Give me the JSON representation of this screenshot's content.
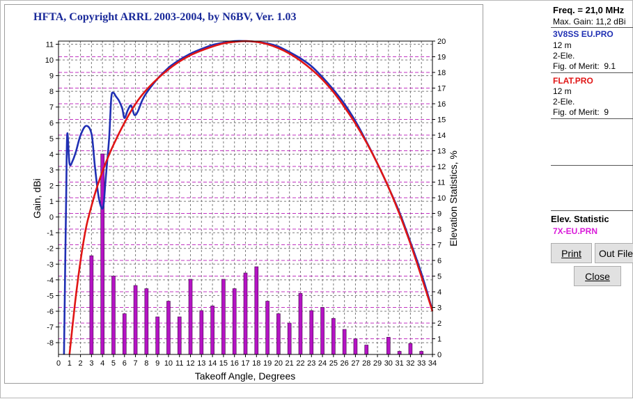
{
  "title": "HFTA, Copyright ARRL 2003-2004, by N6BV, Ver. 1.03",
  "side_panel": {
    "freq": "Freq. = 21,0 MHz",
    "max_gain": "Max. Gain: 11,2 dBi",
    "antennas": [
      {
        "name": "3V8SS EU.PRO",
        "height": "12 m",
        "elements": "2-Ele.",
        "fom_label": "Fig. of Merit:",
        "fom_value": "9.1",
        "color": "#1f2fb3"
      },
      {
        "name": "FLAT.PRO",
        "height": "12 m",
        "elements": "2-Ele.",
        "fom_label": "Fig. of Merit:",
        "fom_value": "9",
        "color": "#e01515"
      }
    ],
    "elev_title": "Elev. Statistic",
    "elev_file": "7X-EU.PRN",
    "elev_file_color": "#d91ad9",
    "buttons": {
      "print": "Print",
      "out_file": "Out File",
      "close": "Close"
    }
  },
  "chart_data": {
    "type": "line",
    "xlabel": "Takeoff Angle, Degrees",
    "ylabel": "Gain, dBi",
    "y2label": "Elevation Statistics, %",
    "xlim": [
      0,
      34
    ],
    "ylim": [
      -8.75,
      11.2
    ],
    "y2lim": [
      0,
      20
    ],
    "grid": true,
    "x_ticks": [
      0,
      1,
      2,
      3,
      4,
      5,
      6,
      7,
      8,
      9,
      10,
      11,
      12,
      13,
      14,
      15,
      16,
      17,
      18,
      19,
      20,
      21,
      22,
      23,
      24,
      25,
      26,
      27,
      28,
      29,
      30,
      31,
      32,
      33,
      34
    ],
    "y_ticks": [
      11,
      10,
      9,
      8,
      7,
      6,
      5,
      4,
      3,
      2,
      1,
      0,
      -1,
      -2,
      -3,
      -4,
      -5,
      -6,
      -7,
      -8
    ],
    "y2_ticks": [
      20,
      19,
      18,
      17,
      16,
      15,
      14,
      13,
      12,
      11,
      10,
      9,
      8,
      7,
      6,
      5,
      4,
      3,
      2,
      1,
      0
    ],
    "series": [
      {
        "name": "3V8SS EU.PRO",
        "color": "#1f2fb3",
        "x": [
          0.5,
          0.7,
          0.8,
          1.0,
          1.3,
          1.6,
          2.0,
          2.5,
          3.0,
          3.3,
          3.6,
          3.9,
          4.1,
          4.3,
          4.6,
          4.8,
          5.0,
          5.2,
          5.5,
          5.8,
          6.0,
          6.3,
          6.6,
          6.9,
          7.2,
          7.6,
          8,
          9,
          10,
          11,
          12,
          13,
          14,
          15,
          16,
          17,
          18,
          19,
          20,
          21,
          22,
          23,
          24,
          25,
          26,
          27,
          28,
          29,
          30,
          31,
          32,
          33,
          33.9
        ],
        "y": [
          -8.75,
          1.5,
          5.3,
          3.4,
          3.6,
          4.2,
          5.2,
          5.8,
          5.3,
          3.3,
          1.5,
          0.6,
          0.8,
          2.5,
          5.0,
          7.6,
          7.9,
          7.7,
          7.4,
          6.9,
          6.3,
          6.8,
          7.1,
          6.5,
          6.7,
          7.4,
          7.9,
          8.8,
          9.5,
          10.0,
          10.4,
          10.7,
          10.95,
          11.1,
          11.2,
          11.2,
          11.15,
          11.05,
          10.85,
          10.5,
          10.1,
          9.6,
          8.9,
          8.1,
          7.2,
          6.1,
          4.8,
          3.4,
          1.9,
          0.3,
          -1.6,
          -3.6,
          -5.7
        ]
      },
      {
        "name": "FLAT.PRO",
        "color": "#e01515",
        "x": [
          1.0,
          1.5,
          2,
          2.5,
          3,
          3.5,
          4,
          4.5,
          5,
          6,
          7,
          8,
          9,
          10,
          11,
          12,
          13,
          14,
          15,
          16,
          17,
          18,
          19,
          20,
          21,
          22,
          23,
          24,
          25,
          26,
          27,
          28,
          29,
          30,
          31,
          32,
          33,
          34
        ],
        "y": [
          -8.75,
          -5.5,
          -2.8,
          -0.7,
          0.7,
          1.9,
          2.9,
          3.8,
          4.6,
          6.0,
          7.2,
          8.1,
          8.8,
          9.4,
          9.9,
          10.3,
          10.6,
          10.85,
          11.05,
          11.15,
          11.2,
          11.15,
          11.0,
          10.75,
          10.4,
          9.95,
          9.4,
          8.75,
          7.95,
          7.0,
          5.95,
          4.75,
          3.4,
          1.9,
          0.2,
          -1.7,
          -3.8,
          -6.0
        ]
      }
    ],
    "bars": {
      "name": "7X-EU.PRN",
      "color": "#b513c4",
      "x": [
        1,
        2,
        3,
        4,
        5,
        6,
        7,
        8,
        9,
        10,
        11,
        12,
        13,
        14,
        15,
        16,
        17,
        18,
        19,
        20,
        21,
        22,
        23,
        24,
        25,
        26,
        27,
        28,
        29,
        30,
        31,
        32,
        33,
        34
      ],
      "values": [
        0,
        0,
        6.3,
        12.8,
        5.0,
        2.6,
        4.4,
        4.2,
        2.4,
        3.4,
        2.4,
        4.8,
        2.8,
        3.1,
        4.8,
        4.2,
        5.2,
        5.6,
        3.4,
        2.6,
        2.0,
        3.9,
        2.8,
        3.0,
        2.3,
        1.6,
        1.0,
        0.6,
        0,
        1.1,
        0.2,
        0.7,
        0.2,
        0
      ]
    }
  }
}
